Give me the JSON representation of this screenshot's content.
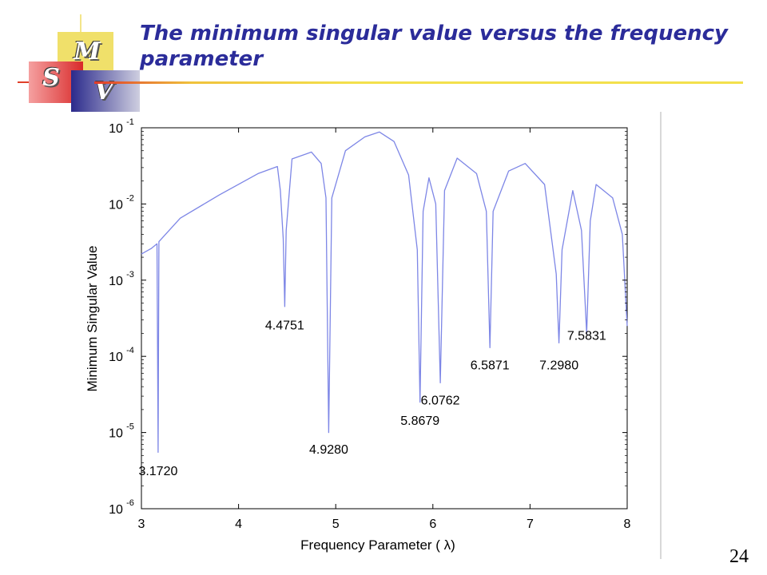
{
  "slide": {
    "title": "The minimum singular value versus the frequency parameter",
    "page_number": "24",
    "logo_letters": [
      "M",
      "S",
      "V"
    ]
  },
  "chart_data": {
    "type": "line",
    "xlabel": "Frequency Parameter ( λ)",
    "ylabel": "Minimum Singular Value",
    "xlim": [
      3,
      8
    ],
    "ylim": [
      1e-06,
      0.1
    ],
    "yscale": "log",
    "x_ticks": [
      "3",
      "4",
      "5",
      "6",
      "7",
      "8"
    ],
    "y_tick_exponents": [
      -1,
      -2,
      -3,
      -4,
      -5,
      -6
    ],
    "grid": false,
    "line_color": "#7d86e6",
    "series": [
      {
        "x": [
          3.0,
          3.1,
          3.16,
          3.172,
          3.18,
          3.4,
          3.8,
          4.2,
          4.4,
          4.43,
          4.46,
          4.4751,
          4.49,
          4.55,
          4.75,
          4.85,
          4.9,
          4.928,
          4.96,
          5.1,
          5.3,
          5.45,
          5.6,
          5.75,
          5.84,
          5.8679,
          5.9,
          5.96,
          6.03,
          6.0762,
          6.12,
          6.25,
          6.45,
          6.55,
          6.5871,
          6.62,
          6.78,
          6.95,
          7.15,
          7.27,
          7.298,
          7.33,
          7.44,
          7.53,
          7.5831,
          7.62,
          7.68,
          7.85,
          7.95,
          8.0
        ],
        "y": [
          0.0022,
          0.0026,
          0.003,
          5.5e-06,
          0.0032,
          0.0065,
          0.0131,
          0.025,
          0.031,
          0.015,
          0.0035,
          0.00045,
          0.0045,
          0.039,
          0.048,
          0.034,
          0.012,
          1e-05,
          0.012,
          0.05,
          0.076,
          0.088,
          0.066,
          0.024,
          0.0025,
          2.5e-05,
          0.008,
          0.022,
          0.01,
          4.5e-05,
          0.015,
          0.04,
          0.025,
          0.008,
          0.00013,
          0.008,
          0.027,
          0.034,
          0.018,
          0.0012,
          0.00015,
          0.0025,
          0.015,
          0.0045,
          0.0002,
          0.006,
          0.018,
          0.012,
          0.004,
          0.00025
        ]
      }
    ],
    "annotations": [
      {
        "label": "3.1720",
        "x": 3.172,
        "y": 3.2e-06
      },
      {
        "label": "4.4751",
        "x": 4.4751,
        "y": 0.00026
      },
      {
        "label": "4.9280",
        "x": 4.928,
        "y": 6.1e-06
      },
      {
        "label": "5.8679",
        "x": 5.8679,
        "y": 1.45e-05
      },
      {
        "label": "6.0762",
        "x": 6.0762,
        "y": 2.7e-05
      },
      {
        "label": "6.5871",
        "x": 6.5871,
        "y": 7.8e-05
      },
      {
        "label": "7.2980",
        "x": 7.298,
        "y": 7.8e-05
      },
      {
        "label": "7.5831",
        "x": 7.5831,
        "y": 0.00019
      }
    ]
  }
}
